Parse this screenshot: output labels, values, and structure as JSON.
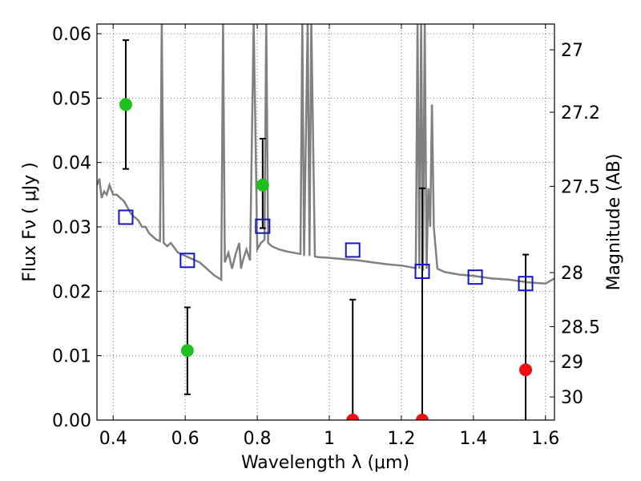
{
  "chart_data": {
    "type": "scatter",
    "xlabel": "Wavelength  λ (μm)",
    "ylabel": "Flux  Fν  ( μJy )",
    "y2label": "Magnitude (AB)",
    "xlim": [
      0.355,
      1.625
    ],
    "ylim": [
      0.0,
      0.0615
    ],
    "grid": true,
    "xticks": [
      0.4,
      0.6,
      0.8,
      1.0,
      1.2,
      1.4,
      1.6
    ],
    "xtick_labels": [
      "0.4",
      "0.6",
      "0.8",
      "1",
      "1.2",
      "1.4",
      "1.6"
    ],
    "yticks": [
      0.0,
      0.01,
      0.02,
      0.03,
      0.04,
      0.05,
      0.06
    ],
    "ytick_labels": [
      "0.00",
      "0.01",
      "0.02",
      "0.03",
      "0.04",
      "0.05",
      "0.06"
    ],
    "y2ticks": [
      {
        "label": "27",
        "flux": 0.0575
      },
      {
        "label": "27.2",
        "flux": 0.0478
      },
      {
        "label": "27.5",
        "flux": 0.0363
      },
      {
        "label": "28",
        "flux": 0.0229
      },
      {
        "label": "28.5",
        "flux": 0.0145
      },
      {
        "label": "29",
        "flux": 0.0091
      },
      {
        "label": "30",
        "flux": 0.0036
      }
    ],
    "colors": {
      "model": "#808080",
      "detection": "#1fbf1f",
      "nondetection": "#ee1111",
      "model_flux": "#1414c8",
      "errorbar": "#000000",
      "grid": "#555555"
    },
    "series": [
      {
        "role": "model_spectrum",
        "type": "line",
        "x": [
          0.355,
          0.362,
          0.368,
          0.375,
          0.382,
          0.39,
          0.4,
          0.41,
          0.42,
          0.43,
          0.44,
          0.45,
          0.46,
          0.47,
          0.48,
          0.49,
          0.5,
          0.51,
          0.52,
          0.53,
          0.535,
          0.54,
          0.55,
          0.56,
          0.58,
          0.6,
          0.62,
          0.64,
          0.66,
          0.68,
          0.7,
          0.705,
          0.71,
          0.72,
          0.73,
          0.74,
          0.75,
          0.755,
          0.76,
          0.77,
          0.78,
          0.79,
          0.8,
          0.81,
          0.82,
          0.825,
          0.83,
          0.84,
          0.86,
          0.88,
          0.9,
          0.92,
          0.925,
          0.93,
          0.94,
          0.945,
          0.95,
          0.96,
          0.97,
          1.0,
          1.04,
          1.08,
          1.12,
          1.16,
          1.2,
          1.22,
          1.24,
          1.245,
          1.25,
          1.255,
          1.26,
          1.265,
          1.27,
          1.275,
          1.28,
          1.285,
          1.29,
          1.3,
          1.32,
          1.34,
          1.36,
          1.4,
          1.45,
          1.5,
          1.55,
          1.6,
          1.625
        ],
        "y": [
          0.0365,
          0.0375,
          0.0345,
          0.0355,
          0.035,
          0.0365,
          0.035,
          0.035,
          0.0345,
          0.034,
          0.033,
          0.032,
          0.0315,
          0.031,
          0.03,
          0.03,
          0.029,
          0.0285,
          0.028,
          0.0278,
          0.062,
          0.0275,
          0.027,
          0.0275,
          0.026,
          0.0255,
          0.025,
          0.0245,
          0.0235,
          0.0225,
          0.0218,
          0.062,
          0.0245,
          0.026,
          0.0235,
          0.0258,
          0.0275,
          0.0235,
          0.0248,
          0.0265,
          0.0248,
          0.062,
          0.0265,
          0.0275,
          0.028,
          0.062,
          0.0275,
          0.027,
          0.0265,
          0.0262,
          0.026,
          0.0258,
          0.062,
          0.0255,
          0.062,
          0.0255,
          0.062,
          0.0254,
          0.0253,
          0.0252,
          0.025,
          0.0248,
          0.0245,
          0.0242,
          0.024,
          0.0238,
          0.0236,
          0.062,
          0.0235,
          0.062,
          0.0232,
          0.062,
          0.0235,
          0.036,
          0.03,
          0.049,
          0.03,
          0.0235,
          0.023,
          0.0228,
          0.0226,
          0.0224,
          0.022,
          0.0218,
          0.0214,
          0.0212,
          0.022
        ]
      },
      {
        "role": "detections",
        "type": "scatter",
        "points": [
          {
            "x": 0.435,
            "y": 0.049,
            "yerr_low": 0.039,
            "yerr_high": 0.059
          },
          {
            "x": 0.606,
            "y": 0.0108,
            "yerr_low": 0.004,
            "yerr_high": 0.0175
          },
          {
            "x": 0.815,
            "y": 0.0365,
            "yerr_low": 0.0298,
            "yerr_high": 0.0437
          }
        ]
      },
      {
        "role": "nondetections",
        "type": "scatter",
        "points": [
          {
            "x": 1.065,
            "y": 0.0,
            "yerr_low": 0.0,
            "yerr_high": 0.0187
          },
          {
            "x": 1.258,
            "y": 0.0,
            "yerr_low": 0.0,
            "yerr_high": 0.036
          },
          {
            "x": 1.545,
            "y": 0.0078,
            "yerr_low": 0.0,
            "yerr_high": 0.0257
          }
        ]
      },
      {
        "role": "model_band_fluxes",
        "type": "scatter",
        "points": [
          {
            "x": 0.435,
            "y": 0.0315
          },
          {
            "x": 0.606,
            "y": 0.0248
          },
          {
            "x": 0.815,
            "y": 0.0301
          },
          {
            "x": 1.065,
            "y": 0.0264
          },
          {
            "x": 1.258,
            "y": 0.0231
          },
          {
            "x": 1.405,
            "y": 0.0222
          },
          {
            "x": 1.545,
            "y": 0.0212
          }
        ]
      }
    ]
  }
}
